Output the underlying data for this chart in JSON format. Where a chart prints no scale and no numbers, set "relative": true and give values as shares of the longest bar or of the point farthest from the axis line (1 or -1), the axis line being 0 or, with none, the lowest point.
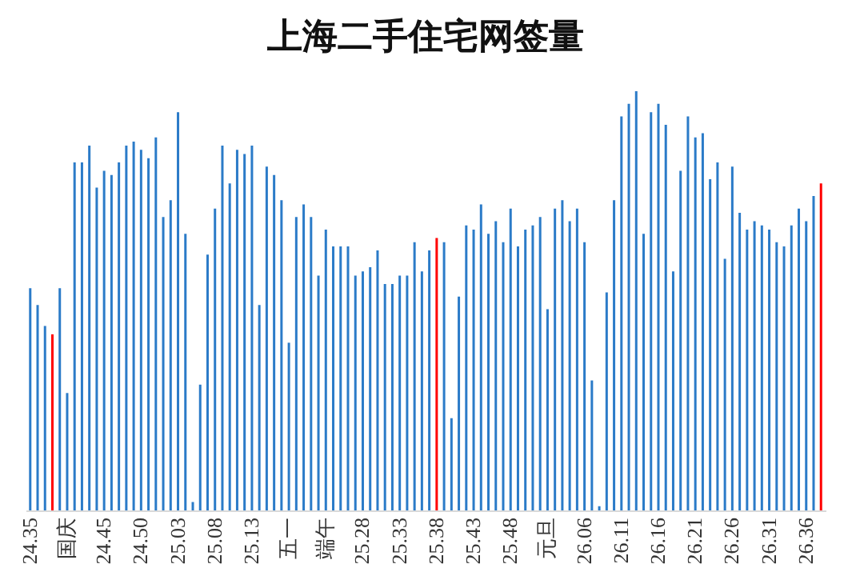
{
  "chart_data": {
    "type": "bar",
    "title": "上海二手住宅网签量",
    "relative": true,
    "categories": [
      "24.35",
      null,
      null,
      null,
      null,
      "国庆",
      null,
      null,
      null,
      null,
      "24.45",
      null,
      null,
      null,
      null,
      "24.50",
      null,
      null,
      null,
      null,
      "25.03",
      null,
      null,
      null,
      null,
      "25.08",
      null,
      null,
      null,
      null,
      "25.13",
      null,
      null,
      null,
      null,
      "五一",
      null,
      null,
      null,
      null,
      "端午",
      null,
      null,
      null,
      null,
      "25.28",
      null,
      null,
      null,
      null,
      "25.33",
      null,
      null,
      null,
      null,
      "25.38",
      null,
      null,
      null,
      null,
      "25.43",
      null,
      null,
      null,
      null,
      "25.48",
      null,
      null,
      null,
      null,
      "元旦",
      null,
      null,
      null,
      null,
      "26.06",
      null,
      null,
      null,
      null,
      "26.11",
      null,
      null,
      null,
      null,
      "26.16",
      null,
      null,
      null,
      null,
      "26.21",
      null,
      null,
      null,
      null,
      "26.26",
      null,
      null,
      null,
      null,
      "26.31",
      null,
      null,
      null,
      null,
      "26.36",
      null,
      null
    ],
    "values": [
      0.53,
      0.49,
      0.44,
      0.42,
      0.53,
      0.28,
      0.83,
      0.83,
      0.87,
      0.77,
      0.81,
      0.8,
      0.83,
      0.87,
      0.88,
      0.86,
      0.84,
      0.89,
      0.7,
      0.74,
      0.95,
      0.66,
      0.02,
      0.3,
      0.61,
      0.72,
      0.87,
      0.78,
      0.86,
      0.85,
      0.87,
      0.49,
      0.82,
      0.8,
      0.74,
      0.4,
      0.7,
      0.73,
      0.7,
      0.56,
      0.67,
      0.63,
      0.63,
      0.63,
      0.56,
      0.57,
      0.58,
      0.62,
      0.54,
      0.54,
      0.56,
      0.56,
      0.64,
      0.57,
      0.62,
      0.65,
      0.64,
      0.22,
      0.51,
      0.68,
      0.67,
      0.73,
      0.66,
      0.69,
      0.64,
      0.72,
      0.63,
      0.67,
      0.68,
      0.7,
      0.48,
      0.72,
      0.74,
      0.69,
      0.72,
      0.64,
      0.31,
      0.01,
      0.52,
      0.74,
      0.94,
      0.97,
      1,
      0.66,
      0.95,
      0.97,
      0.92,
      0.57,
      0.81,
      0.94,
      0.89,
      0.9,
      0.79,
      0.83,
      0.6,
      0.82,
      0.71,
      0.67,
      0.69,
      0.68,
      0.67,
      0.64,
      0.63,
      0.68,
      0.72,
      0.69,
      0.75,
      0.78
    ],
    "colors": [
      "#2b7bc8",
      "#2b7bc8",
      "#2b7bc8",
      "#ff0000",
      "#2b7bc8",
      "#2b7bc8",
      "#2b7bc8",
      "#2b7bc8",
      "#2b7bc8",
      "#2b7bc8",
      "#2b7bc8",
      "#2b7bc8",
      "#2b7bc8",
      "#2b7bc8",
      "#2b7bc8",
      "#2b7bc8",
      "#2b7bc8",
      "#2b7bc8",
      "#2b7bc8",
      "#2b7bc8",
      "#2b7bc8",
      "#2b7bc8",
      "#2b7bc8",
      "#2b7bc8",
      "#2b7bc8",
      "#2b7bc8",
      "#2b7bc8",
      "#2b7bc8",
      "#2b7bc8",
      "#2b7bc8",
      "#2b7bc8",
      "#2b7bc8",
      "#2b7bc8",
      "#2b7bc8",
      "#2b7bc8",
      "#2b7bc8",
      "#2b7bc8",
      "#2b7bc8",
      "#2b7bc8",
      "#2b7bc8",
      "#2b7bc8",
      "#2b7bc8",
      "#2b7bc8",
      "#2b7bc8",
      "#2b7bc8",
      "#2b7bc8",
      "#2b7bc8",
      "#2b7bc8",
      "#2b7bc8",
      "#2b7bc8",
      "#2b7bc8",
      "#2b7bc8",
      "#2b7bc8",
      "#2b7bc8",
      "#2b7bc8",
      "#ff0000",
      "#2b7bc8",
      "#2b7bc8",
      "#2b7bc8",
      "#2b7bc8",
      "#2b7bc8",
      "#2b7bc8",
      "#2b7bc8",
      "#2b7bc8",
      "#2b7bc8",
      "#2b7bc8",
      "#2b7bc8",
      "#2b7bc8",
      "#2b7bc8",
      "#2b7bc8",
      "#2b7bc8",
      "#2b7bc8",
      "#2b7bc8",
      "#2b7bc8",
      "#2b7bc8",
      "#2b7bc8",
      "#2b7bc8",
      "#2b7bc8",
      "#2b7bc8",
      "#2b7bc8",
      "#2b7bc8",
      "#2b7bc8",
      "#2b7bc8",
      "#2b7bc8",
      "#2b7bc8",
      "#2b7bc8",
      "#2b7bc8",
      "#2b7bc8",
      "#2b7bc8",
      "#2b7bc8",
      "#2b7bc8",
      "#2b7bc8",
      "#2b7bc8",
      "#2b7bc8",
      "#2b7bc8",
      "#2b7bc8",
      "#2b7bc8",
      "#2b7bc8",
      "#2b7bc8",
      "#2b7bc8",
      "#2b7bc8",
      "#2b7bc8",
      "#2b7bc8",
      "#2b7bc8",
      "#2b7bc8",
      "#2b7bc8",
      "#2b7bc8",
      "#ff0000"
    ],
    "grid": false
  }
}
